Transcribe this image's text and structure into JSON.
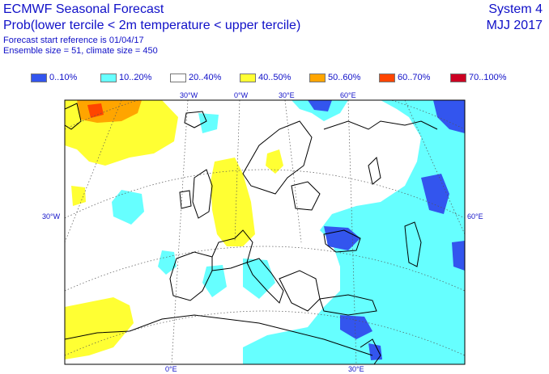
{
  "header": {
    "title": "ECMWF Seasonal Forecast",
    "subtitle": "Prob(lower tercile < 2m temperature < upper tercile)",
    "start_ref": "Forecast start reference is 01/04/17",
    "ensemble": "Ensemble size = 51, climate size = 450",
    "system": "System 4",
    "period": "MJJ 2017"
  },
  "legend": [
    {
      "label": "0..10%",
      "color": "#3355ee"
    },
    {
      "label": "10..20%",
      "color": "#66ffff"
    },
    {
      "label": "20..40%",
      "color": "#ffffff"
    },
    {
      "label": "40..50%",
      "color": "#ffff33"
    },
    {
      "label": "50..60%",
      "color": "#ffa500"
    },
    {
      "label": "60..70%",
      "color": "#ff4500"
    },
    {
      "label": "70..100%",
      "color": "#cc0022"
    }
  ],
  "map": {
    "graticule_labels": {
      "top_30w": "30°W",
      "top_0w": "0°W",
      "top_30e": "30°E",
      "top_60e": "60°E",
      "left_30w": "30°W",
      "right_60e": "60°E",
      "bottom_0e": "0°E",
      "bottom_30e": "30°E"
    }
  }
}
